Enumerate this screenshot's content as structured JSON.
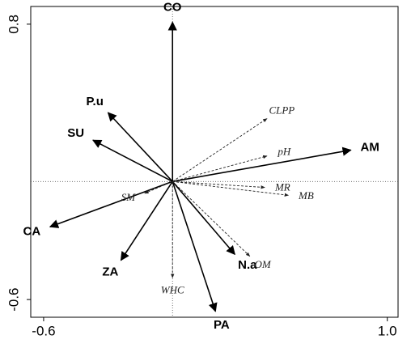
{
  "chart_data": {
    "type": "biplot",
    "xlim": [
      -0.66,
      1.05
    ],
    "ylim": [
      -0.69,
      0.89
    ],
    "xticks": [
      -0.6,
      1.0
    ],
    "yticks": [
      -0.6,
      0.8
    ],
    "xtick_labels": [
      "-0.6",
      "1.0"
    ],
    "ytick_labels": [
      "-0.6",
      "0.8"
    ],
    "color": "#000000",
    "groups": [
      {
        "style": "solid",
        "labels": [
          "CO",
          "P.u",
          "SU",
          "CA",
          "ZA",
          "PA",
          "N.a",
          "AM"
        ],
        "x": [
          0.0,
          -0.3,
          -0.37,
          -0.57,
          -0.24,
          0.2,
          0.29,
          0.83
        ],
        "y": [
          0.81,
          0.35,
          0.21,
          -0.23,
          -0.4,
          -0.66,
          -0.37,
          0.16
        ]
      },
      {
        "style": "dashed",
        "labels": [
          "CLPP",
          "pH",
          "MR",
          "MB",
          "OM",
          "WHC",
          "SM"
        ],
        "x": [
          0.44,
          0.44,
          0.43,
          0.54,
          0.36,
          0.0,
          -0.13
        ],
        "y": [
          0.32,
          0.13,
          -0.03,
          -0.07,
          -0.38,
          -0.49,
          -0.06
        ]
      }
    ]
  }
}
